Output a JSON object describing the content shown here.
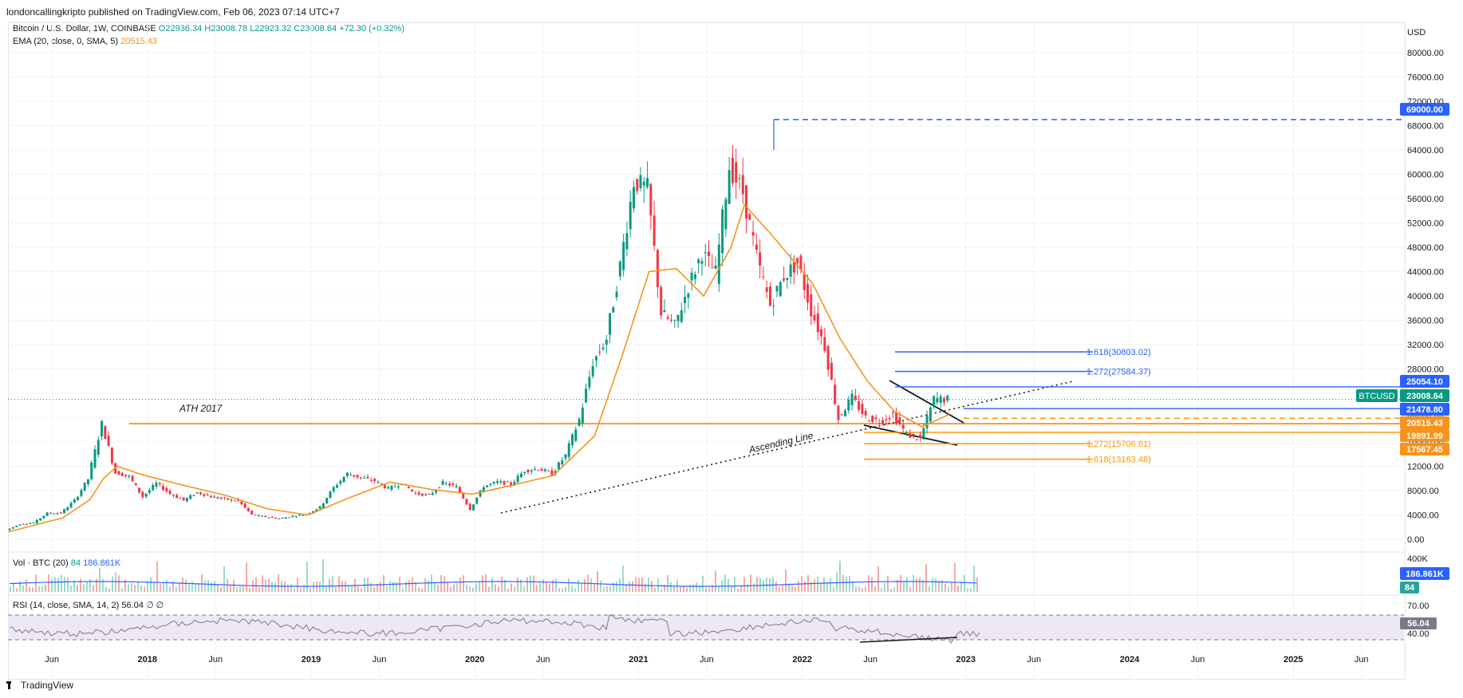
{
  "header": {
    "publisher": "londoncallingkripto published on TradingView.com, Feb 06, 2023 07:14 UTC+7"
  },
  "legend": {
    "symbol": "Bitcoin / U.S. Dollar, 1W, COINBASE",
    "open": "O22936.34",
    "high": "H23008.78",
    "low": "L22923.32",
    "close": "C23008.64",
    "change": "+72.30 (+0.32%)",
    "ema_label": "EMA (20, close, 0, SMA, 5)",
    "ema_value": "20515.43",
    "vol_label": "Vol · BTC (20)",
    "vol_value1": "84",
    "vol_value2": "186.861K",
    "rsi_label": "RSI (14, close, SMA, 14, 2)",
    "rsi_value": "56.04",
    "rsi_extra": "∅ ∅"
  },
  "footer": {
    "brand": "TradingView",
    "logo_icon": "tradingview-logo-icon"
  },
  "colors": {
    "up": "#089981",
    "down": "#f23645",
    "ema": "#f7931a",
    "fib_blue": "#2962ff",
    "fib_orange": "#ff9800",
    "ath_line": "#f57c00",
    "rsi_band": "#7e57c2",
    "grid": "#f0f3fa"
  },
  "chart_data": [
    {
      "type": "candlestick",
      "x_ticks": [
        "Jun",
        "2018",
        "Jun",
        "2019",
        "Jun",
        "2020",
        "Jun",
        "2021",
        "Jun",
        "2022",
        "Jun",
        "2023",
        "Jun",
        "2024",
        "Jun",
        "2025",
        "Jun"
      ],
      "y_axis_label": "USD",
      "y_ticks": [
        "80000.00",
        "76000.00",
        "72000.00",
        "68000.00",
        "64000.00",
        "60000.00",
        "56000.00",
        "52000.00",
        "48000.00",
        "44000.00",
        "40000.00",
        "36000.00",
        "32000.00",
        "28000.00",
        "24000.00",
        "20000.00",
        "16000.00",
        "12000.00",
        "8000.00",
        "4000.00",
        "0.00"
      ],
      "ylim": [
        0,
        80000
      ],
      "price_series": [
        [
          "2017-05",
          1500
        ],
        [
          "2017-06",
          2500
        ],
        [
          "2017-07",
          2700
        ],
        [
          "2017-08",
          4300
        ],
        [
          "2017-09",
          4300
        ],
        [
          "2017-10",
          6400
        ],
        [
          "2017-11",
          9900
        ],
        [
          "2017-12",
          19000
        ],
        [
          "2018-01",
          11000
        ],
        [
          "2018-02",
          10300
        ],
        [
          "2018-03",
          7000
        ],
        [
          "2018-04",
          9200
        ],
        [
          "2018-05",
          7500
        ],
        [
          "2018-06",
          6400
        ],
        [
          "2018-07",
          7700
        ],
        [
          "2018-08",
          7000
        ],
        [
          "2018-09",
          6600
        ],
        [
          "2018-10",
          6300
        ],
        [
          "2018-11",
          4000
        ],
        [
          "2018-12",
          3700
        ],
        [
          "2019-01",
          3400
        ],
        [
          "2019-02",
          3800
        ],
        [
          "2019-03",
          4100
        ],
        [
          "2019-04",
          5300
        ],
        [
          "2019-05",
          8500
        ],
        [
          "2019-06",
          10800
        ],
        [
          "2019-07",
          10100
        ],
        [
          "2019-08",
          9600
        ],
        [
          "2019-09",
          8300
        ],
        [
          "2019-10",
          9200
        ],
        [
          "2019-11",
          7500
        ],
        [
          "2019-12",
          7200
        ],
        [
          "2020-01",
          9300
        ],
        [
          "2020-02",
          8600
        ],
        [
          "2020-03",
          5000
        ],
        [
          "2020-04",
          8700
        ],
        [
          "2020-05",
          9400
        ],
        [
          "2020-06",
          9100
        ],
        [
          "2020-07",
          11300
        ],
        [
          "2020-08",
          11600
        ],
        [
          "2020-09",
          10800
        ],
        [
          "2020-10",
          13800
        ],
        [
          "2020-11",
          19700
        ],
        [
          "2020-12",
          29000
        ],
        [
          "2021-01",
          33000
        ],
        [
          "2021-02",
          45000
        ],
        [
          "2021-03",
          58800
        ],
        [
          "2021-04",
          57700
        ],
        [
          "2021-05",
          37300
        ],
        [
          "2021-06",
          35000
        ],
        [
          "2021-07",
          41500
        ],
        [
          "2021-08",
          47100
        ],
        [
          "2021-09",
          43800
        ],
        [
          "2021-10",
          61300
        ],
        [
          "2021-11",
          57000
        ],
        [
          "2021-12",
          46300
        ],
        [
          "2022-01",
          38500
        ],
        [
          "2022-02",
          43200
        ],
        [
          "2022-03",
          45500
        ],
        [
          "2022-04",
          37700
        ],
        [
          "2022-05",
          31800
        ],
        [
          "2022-06",
          19900
        ],
        [
          "2022-07",
          23300
        ],
        [
          "2022-08",
          20000
        ],
        [
          "2022-09",
          19400
        ],
        [
          "2022-10",
          20500
        ],
        [
          "2022-11",
          17200
        ],
        [
          "2022-12",
          16500
        ],
        [
          "2023-01",
          23100
        ],
        [
          "2023-02",
          23008.64
        ]
      ],
      "ema_series": [
        [
          "2017-05",
          1200
        ],
        [
          "2017-09",
          3500
        ],
        [
          "2017-11",
          6500
        ],
        [
          "2017-12",
          10000
        ],
        [
          "2018-01",
          12000
        ],
        [
          "2018-03",
          10500
        ],
        [
          "2018-06",
          8800
        ],
        [
          "2018-09",
          7200
        ],
        [
          "2018-12",
          5000
        ],
        [
          "2019-03",
          4000
        ],
        [
          "2019-06",
          6800
        ],
        [
          "2019-09",
          9400
        ],
        [
          "2019-12",
          8200
        ],
        [
          "2020-03",
          7400
        ],
        [
          "2020-06",
          8900
        ],
        [
          "2020-09",
          10500
        ],
        [
          "2020-12",
          17000
        ],
        [
          "2021-02",
          30000
        ],
        [
          "2021-04",
          44000
        ],
        [
          "2021-06",
          44500
        ],
        [
          "2021-08",
          40000
        ],
        [
          "2021-10",
          48000
        ],
        [
          "2021-11",
          55000
        ],
        [
          "2022-01",
          50000
        ],
        [
          "2022-04",
          42000
        ],
        [
          "2022-06",
          33000
        ],
        [
          "2022-08",
          26000
        ],
        [
          "2022-10",
          21000
        ],
        [
          "2022-12",
          18500
        ],
        [
          "2023-02",
          20515.43
        ]
      ],
      "price_labels": [
        {
          "value": 69000,
          "text": "69000.00",
          "color": "#2962ff"
        },
        {
          "value": 25054.1,
          "text": "25054.10",
          "color": "#2962ff"
        },
        {
          "value": 23008.64,
          "text": "23008.64",
          "color": "#089981",
          "tag": "BTCUSD"
        },
        {
          "value": 21478.8,
          "text": "21478.80",
          "color": "#2962ff"
        },
        {
          "value": 20515.43,
          "text": "20515.43",
          "color": "#f7931a"
        },
        {
          "value": 19891.99,
          "text": "19891.99",
          "color": "#f7931a"
        },
        {
          "value": 17567.45,
          "text": "17567.45",
          "color": "#f7931a"
        }
      ],
      "fib_levels": [
        {
          "label": "1.618(30803.02)",
          "value": 30803.02,
          "color": "#2962ff"
        },
        {
          "label": "1.272(27584.37)",
          "value": 27584.37,
          "color": "#2962ff"
        },
        {
          "label": "1.272(15706.81)",
          "value": 15706.81,
          "color": "#ff9800"
        },
        {
          "label": "1.618(13163.48)",
          "value": 13163.48,
          "color": "#ff9800"
        }
      ],
      "annotations": [
        {
          "text": "ATH 2017"
        },
        {
          "text": "Ascending Line"
        }
      ]
    },
    {
      "type": "bar",
      "title": "Vol · BTC (20)",
      "y_ticks": [
        "400K"
      ],
      "labels": [
        "186.861K",
        "84"
      ]
    },
    {
      "type": "line",
      "title": "RSI (14, close, SMA, 14, 2)",
      "y_ticks": [
        "70.00",
        "40.00"
      ],
      "band": [
        30,
        70
      ],
      "value_label": "56.04"
    }
  ]
}
